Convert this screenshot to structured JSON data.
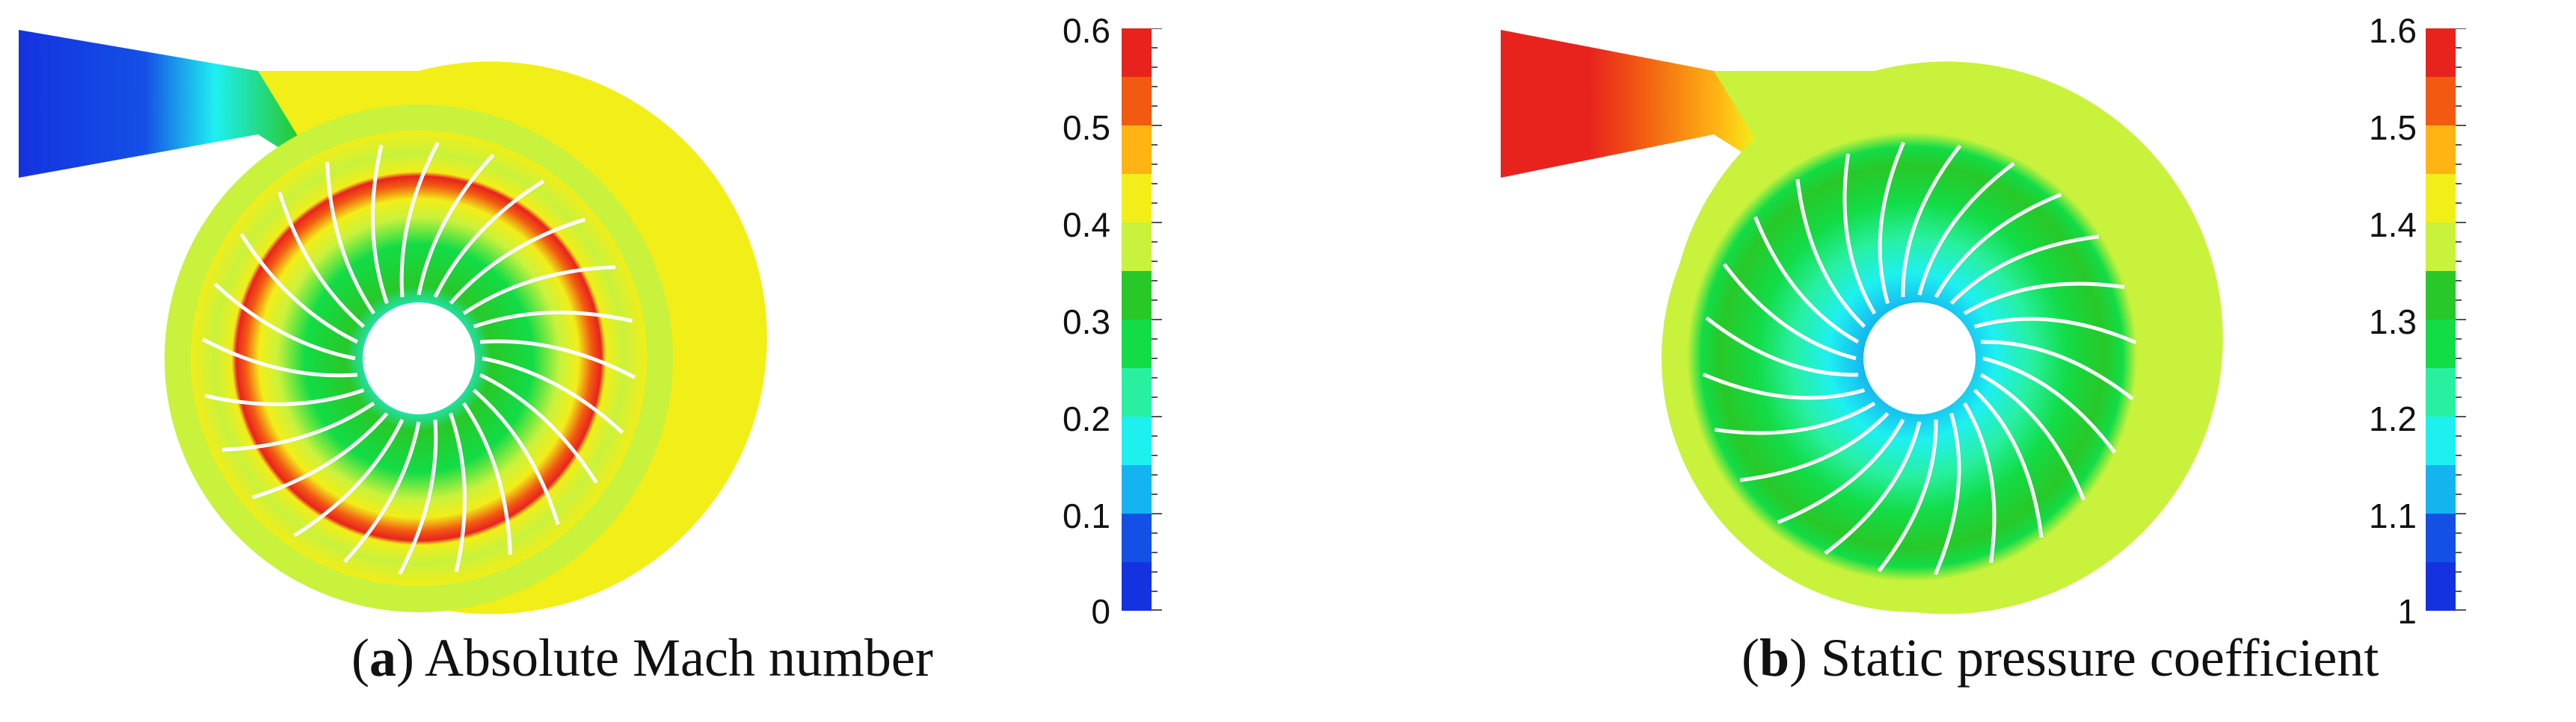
{
  "panels": [
    {
      "letter": "a",
      "title": "Absolute Mach number",
      "colorbar": {
        "ticks": [
          "0.6",
          "0.5",
          "0.4",
          "0.3",
          "0.2",
          "0.1",
          "0"
        ],
        "colors": [
          "#e8231e",
          "#f25a12",
          "#ffb414",
          "#f2ee18",
          "#c8f23c",
          "#28c828",
          "#12dc46",
          "#28f0a0",
          "#1ef0f0",
          "#14b4f0",
          "#1450e6",
          "#1432e0"
        ]
      }
    },
    {
      "letter": "b",
      "title": "Static pressure coefficient",
      "colorbar": {
        "ticks": [
          "1.6",
          "1.5",
          "1.4",
          "1.3",
          "1.2",
          "1.1",
          "1"
        ],
        "colors": [
          "#e8231e",
          "#f25a12",
          "#ffb414",
          "#f2ee18",
          "#c8f23c",
          "#28c828",
          "#12dc46",
          "#28f0a0",
          "#1ef0f0",
          "#14b4f0",
          "#1450e6",
          "#1432e0"
        ]
      }
    }
  ]
}
